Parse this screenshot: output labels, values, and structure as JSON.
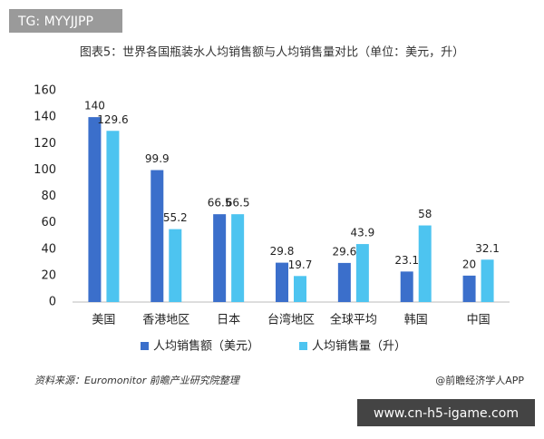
{
  "tag": "TG: MYYJJPP",
  "watermark": "www.cn-h5-igame.com",
  "chart_data": {
    "type": "bar",
    "title": "图表5：世界各国瓶装水人均销售额与人均销售量对比（单位：美元，升）",
    "categories": [
      "美国",
      "香港地区",
      "日本",
      "台湾地区",
      "全球平均",
      "韩国",
      "中国"
    ],
    "series": [
      {
        "name": "人均销售额（美元）",
        "color": "#3b6fcb",
        "values": [
          140,
          99.9,
          66.5,
          29.8,
          29.6,
          23.1,
          20
        ]
      },
      {
        "name": "人均销售量（升）",
        "color": "#4dc4f0",
        "values": [
          129.6,
          55.2,
          66.5,
          19.7,
          43.9,
          58,
          32.1
        ]
      }
    ],
    "ylim": [
      0,
      160
    ],
    "yticks": [
      0,
      20,
      40,
      60,
      80,
      100,
      120,
      140,
      160
    ],
    "grid": false,
    "source": "资料来源：Euromonitor 前瞻产业研究院整理",
    "credit": "@前瞻经济学人APP"
  }
}
